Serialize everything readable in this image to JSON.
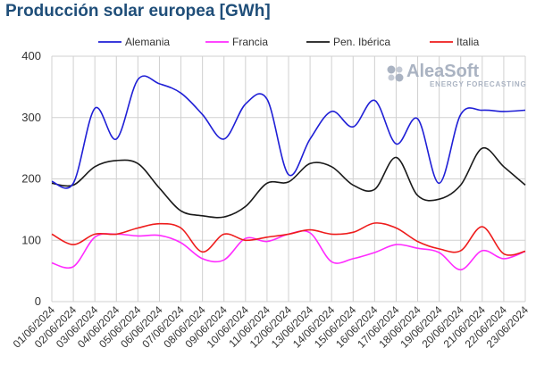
{
  "chart_data": {
    "type": "line",
    "title": "Producción solar europea [GWh]",
    "xlabel": "",
    "ylabel": "",
    "ylim": [
      0,
      400
    ],
    "yticks": [
      0,
      100,
      200,
      300,
      400
    ],
    "grid": true,
    "legend_position": "top",
    "categories": [
      "01/06/2024",
      "02/06/2024",
      "03/06/2024",
      "04/06/2024",
      "05/06/2024",
      "06/06/2024",
      "07/06/2024",
      "08/06/2024",
      "09/06/2024",
      "10/06/2024",
      "11/06/2024",
      "12/06/2024",
      "13/06/2024",
      "14/06/2024",
      "15/06/2024",
      "16/06/2024",
      "17/06/2024",
      "18/06/2024",
      "19/06/2024",
      "20/06/2024",
      "21/06/2024",
      "22/06/2024",
      "23/06/2024"
    ],
    "series": [
      {
        "name": "Alemania",
        "color": "#1f1fd6",
        "values": [
          196,
          193,
          315,
          265,
          362,
          355,
          340,
          305,
          265,
          322,
          330,
          207,
          265,
          310,
          285,
          328,
          257,
          298,
          193,
          305,
          312,
          310,
          312
        ]
      },
      {
        "name": "Francia",
        "color": "#ff2bff",
        "values": [
          63,
          57,
          105,
          110,
          107,
          108,
          96,
          70,
          68,
          103,
          98,
          110,
          112,
          65,
          70,
          80,
          93,
          87,
          80,
          52,
          83,
          70,
          82
        ]
      },
      {
        "name": "Pen. Ibérica",
        "color": "#1a1a1a",
        "values": [
          193,
          190,
          220,
          230,
          225,
          185,
          148,
          140,
          138,
          155,
          193,
          195,
          225,
          220,
          190,
          183,
          235,
          173,
          167,
          190,
          250,
          220,
          190
        ]
      },
      {
        "name": "Italia",
        "color": "#ee1c1c",
        "values": [
          110,
          93,
          110,
          110,
          120,
          127,
          120,
          81,
          110,
          100,
          105,
          110,
          117,
          110,
          113,
          128,
          120,
          98,
          86,
          83,
          122,
          78,
          82
        ]
      }
    ]
  },
  "logo": {
    "name": "AleaSoft",
    "tagline": "ENERGY FORECASTING"
  }
}
